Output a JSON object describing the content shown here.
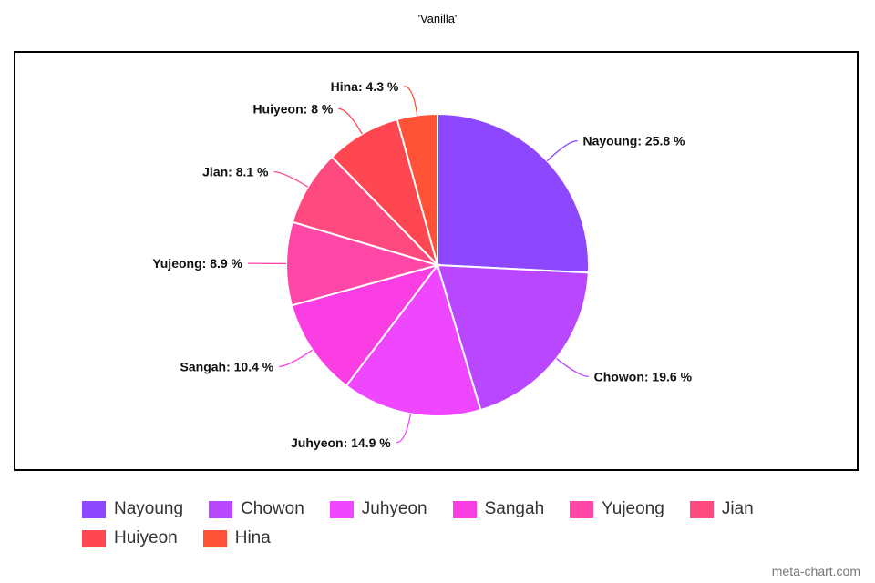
{
  "chart_data": {
    "type": "pie",
    "title": "\"Vanilla\"",
    "categories": [
      "Nayoung",
      "Chowon",
      "Juhyeon",
      "Sangah",
      "Yujeong",
      "Jian",
      "Huiyeon",
      "Hina"
    ],
    "values": [
      25.8,
      19.6,
      14.9,
      10.4,
      8.9,
      8.1,
      8,
      4.3
    ],
    "labels": [
      "Nayoung: 25.8 %",
      "Chowon: 19.6 %",
      "Juhyeon: 14.9 %",
      "Sangah: 10.4 %",
      "Yujeong: 8.9 %",
      "Jian: 8.1 %",
      "Huiyeon: 8 %",
      "Hina: 4.3 %"
    ],
    "colors": [
      "#8c47ff",
      "#b847ff",
      "#ef47ff",
      "#fa3ee4",
      "#ff47a8",
      "#ff4a80",
      "#ff4751",
      "#ff5236"
    ],
    "legend_position": "bottom"
  },
  "credit": "meta-chart.com"
}
